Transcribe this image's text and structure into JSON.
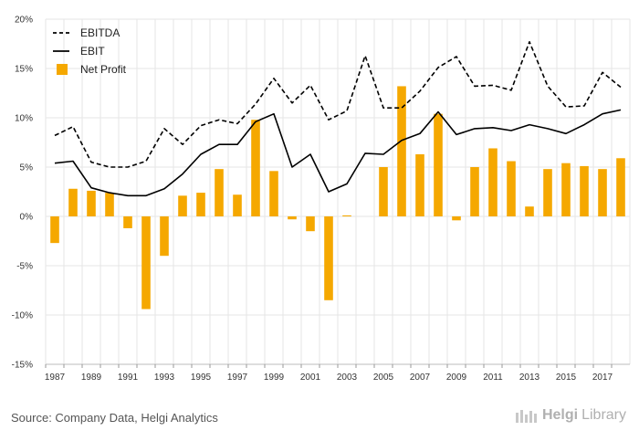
{
  "chart_data": {
    "type": "bar+line",
    "title": "",
    "xlabel": "",
    "ylabel": "",
    "ylim": [
      -15,
      20
    ],
    "yticks": [
      -15,
      -10,
      -5,
      0,
      5,
      10,
      15,
      20
    ],
    "ytick_labels": [
      "-15%",
      "-10%",
      "-5%",
      "0%",
      "5%",
      "10%",
      "15%",
      "20%"
    ],
    "x": [
      1987,
      1988,
      1989,
      1990,
      1991,
      1992,
      1993,
      1994,
      1995,
      1996,
      1997,
      1998,
      1999,
      2000,
      2001,
      2002,
      2003,
      2004,
      2005,
      2006,
      2007,
      2008,
      2009,
      2010,
      2011,
      2012,
      2013,
      2014,
      2015,
      2016,
      2017,
      2018
    ],
    "xtick_labels": [
      "1987",
      "1989",
      "1991",
      "1993",
      "1995",
      "1997",
      "1999",
      "2001",
      "2003",
      "2005",
      "2007",
      "2009",
      "2011",
      "2013",
      "2015",
      "2017"
    ],
    "grid": true,
    "legend_position": "top-left",
    "series": [
      {
        "name": "EBITDA",
        "kind": "line",
        "style": "dashed",
        "color": "#000000",
        "values": [
          8.2,
          9.1,
          5.5,
          5.0,
          5.0,
          5.6,
          8.9,
          7.3,
          9.2,
          9.8,
          9.4,
          11.4,
          14.0,
          11.5,
          13.3,
          9.8,
          10.7,
          16.3,
          11.0,
          11.0,
          12.7,
          15.1,
          16.2,
          13.2,
          13.3,
          12.8,
          17.7,
          13.2,
          11.1,
          11.2,
          14.6,
          13.1
        ]
      },
      {
        "name": "EBIT",
        "kind": "line",
        "style": "solid",
        "color": "#000000",
        "values": [
          5.4,
          5.6,
          2.9,
          2.4,
          2.1,
          2.1,
          2.8,
          4.3,
          6.3,
          7.3,
          7.3,
          9.6,
          10.4,
          5.0,
          6.3,
          2.5,
          3.3,
          6.4,
          6.3,
          7.7,
          8.4,
          10.6,
          8.3,
          8.9,
          9.0,
          8.7,
          9.3,
          8.9,
          8.4,
          9.3,
          10.4,
          10.8
        ]
      },
      {
        "name": "Net Profit",
        "kind": "bar",
        "color": "#f5a800",
        "values": [
          -2.7,
          2.8,
          2.6,
          2.4,
          -1.2,
          -9.4,
          -4.0,
          2.1,
          2.4,
          4.8,
          2.2,
          9.8,
          4.6,
          -0.3,
          -1.5,
          -8.5,
          0.1,
          0.0,
          5.0,
          13.2,
          6.3,
          10.4,
          -0.4,
          5.0,
          6.9,
          5.6,
          1.0,
          4.8,
          5.4,
          5.1,
          4.8,
          5.9
        ]
      }
    ]
  },
  "footer": {
    "source": "Source: Company Data, Helgi Analytics",
    "logo_part1": "Helgi",
    "logo_part2": "Library"
  }
}
